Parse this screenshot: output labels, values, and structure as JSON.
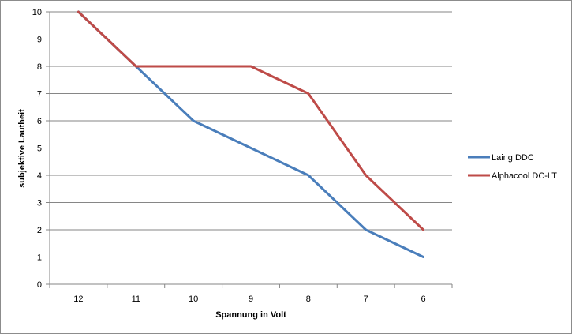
{
  "chart_data": {
    "type": "line",
    "title": "",
    "xlabel": "Spannung in Volt",
    "ylabel": "subjektive Lautheit",
    "categories": [
      "12",
      "11",
      "10",
      "9",
      "8",
      "7",
      "6"
    ],
    "ylim": [
      0,
      10
    ],
    "yticks": [
      0,
      1,
      2,
      3,
      4,
      5,
      6,
      7,
      8,
      9,
      10
    ],
    "grid": "horizontal",
    "legend_position": "right",
    "series": [
      {
        "name": "Laing DDC",
        "color": "#4a7ebb",
        "values": [
          10,
          8,
          6,
          5,
          4,
          2,
          1
        ]
      },
      {
        "name": "Alphacool DC-LT",
        "color": "#be4b48",
        "values": [
          10,
          8,
          8,
          8,
          7,
          4,
          2
        ]
      }
    ]
  }
}
